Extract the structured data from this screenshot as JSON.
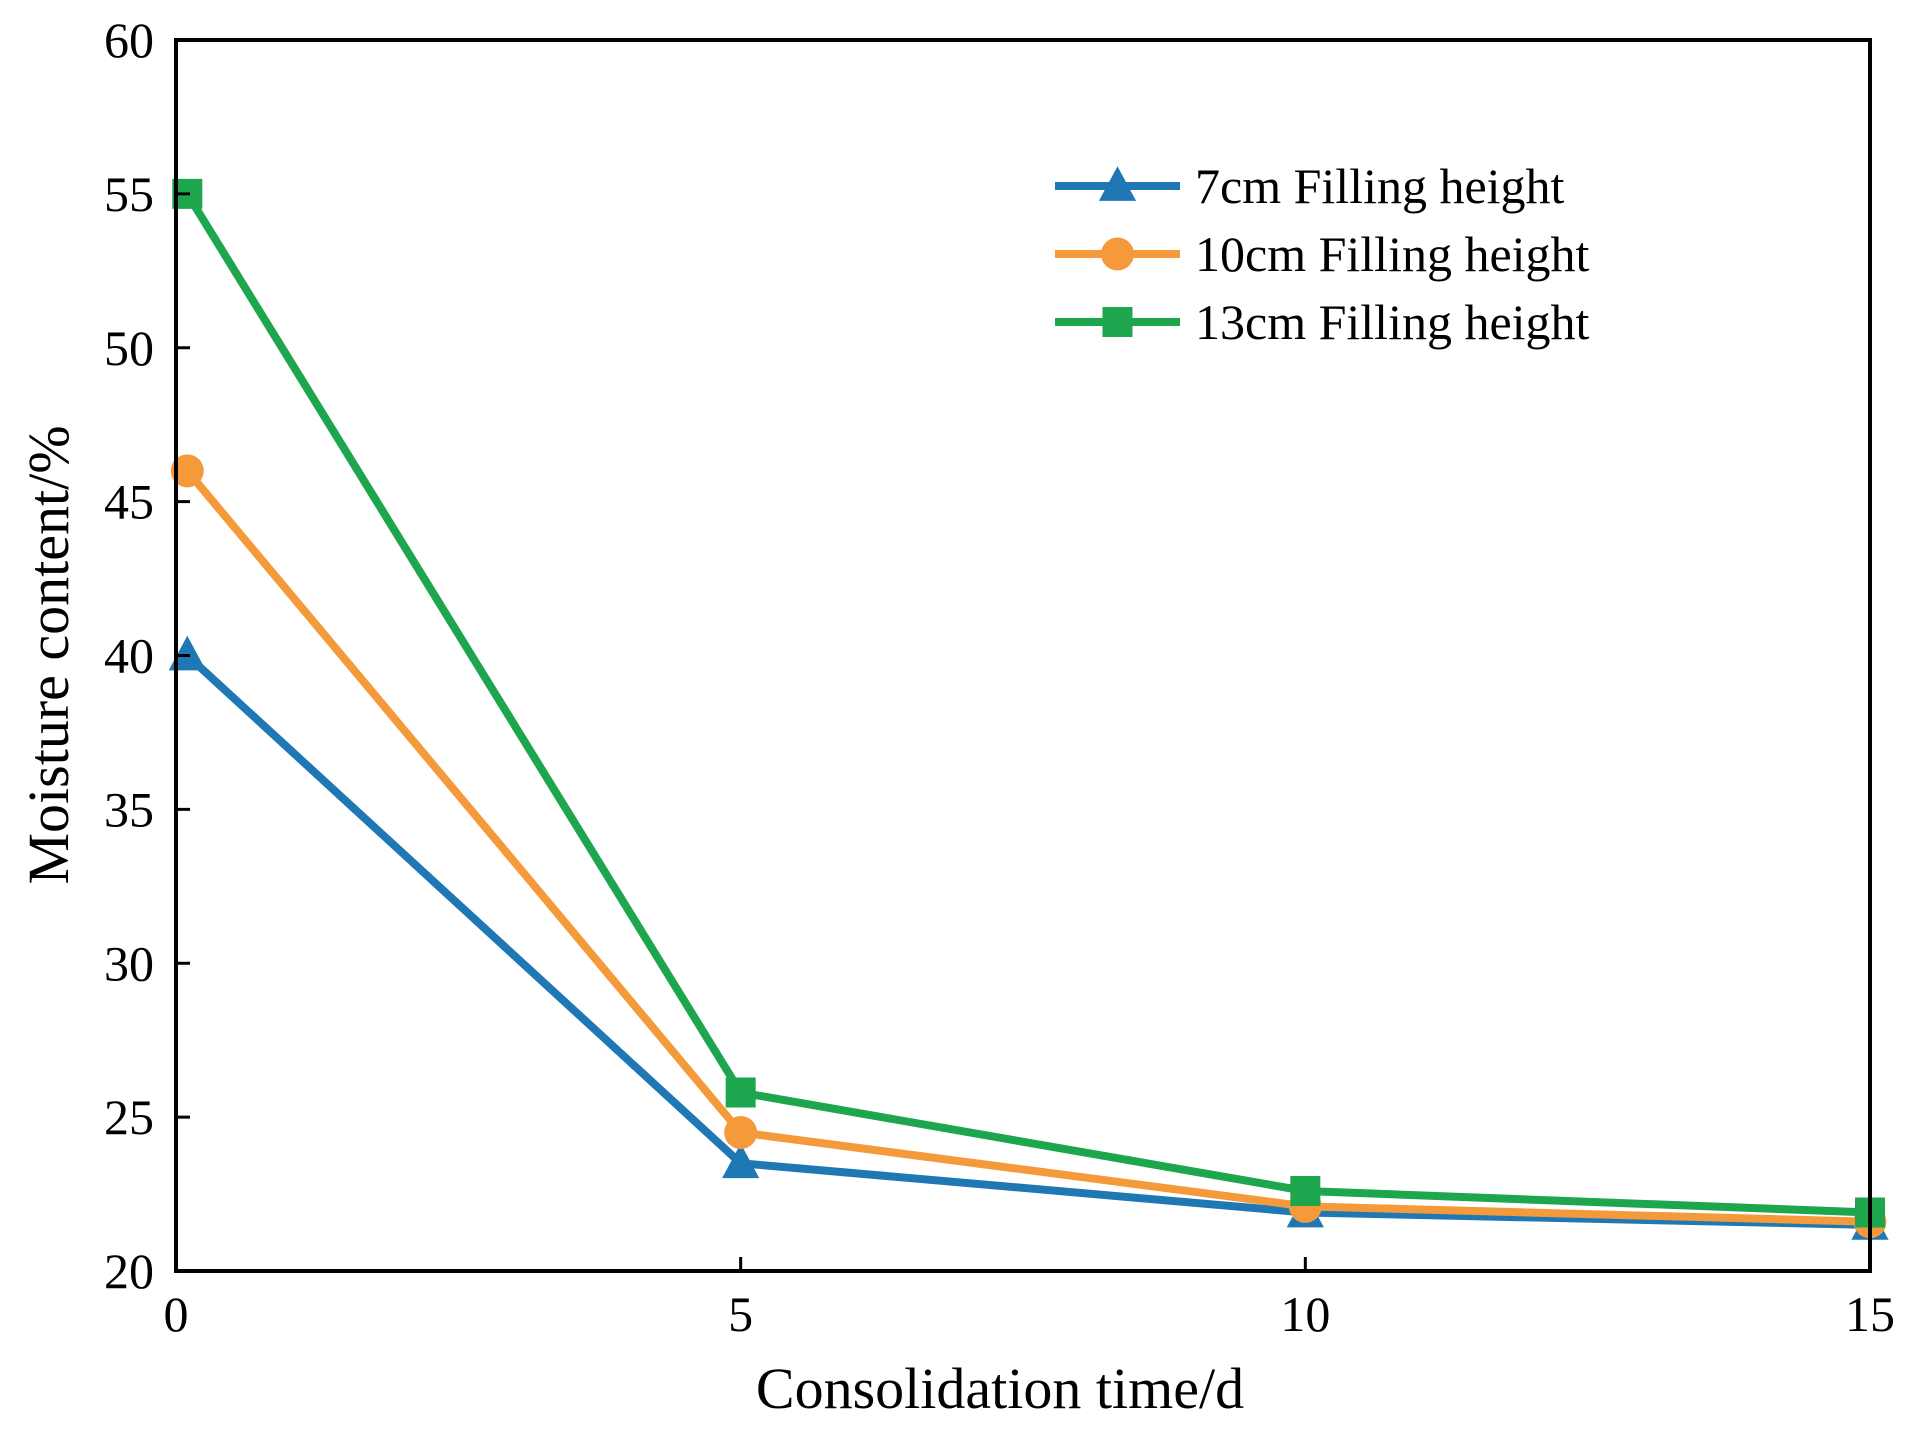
{
  "chart_data": {
    "type": "line",
    "xlabel": "Consolidation time/d",
    "ylabel": "Moisture content/%",
    "xlim": [
      0,
      15
    ],
    "ylim": [
      20,
      60
    ],
    "xticks": [
      0,
      5,
      10,
      15
    ],
    "yticks": [
      20,
      25,
      30,
      35,
      40,
      45,
      50,
      55,
      60
    ],
    "grid": false,
    "legend_position": "top-right",
    "series": [
      {
        "name": "7cm Filling height",
        "color": "#1f78b4",
        "marker": "triangle",
        "x": [
          0.1,
          5,
          10,
          15
        ],
        "y": [
          40.0,
          23.5,
          21.9,
          21.5
        ]
      },
      {
        "name": "10cm Filling height",
        "color": "#f59a3a",
        "marker": "circle",
        "x": [
          0.1,
          5,
          10,
          15
        ],
        "y": [
          46.0,
          24.5,
          22.1,
          21.6
        ]
      },
      {
        "name": "13cm Filling height",
        "color": "#1ea64f",
        "marker": "square",
        "x": [
          0.1,
          5,
          10,
          15
        ],
        "y": [
          55.0,
          25.8,
          22.6,
          21.9
        ]
      }
    ]
  }
}
